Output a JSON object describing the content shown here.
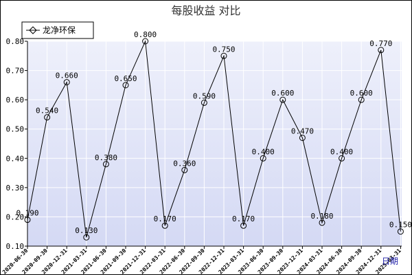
{
  "chart_data": {
    "type": "line",
    "title": "每股收益  对比",
    "xlabel": "日期",
    "ylabel": "",
    "ylim": [
      0.1,
      0.8
    ],
    "yticks": [
      "0.10",
      "0.20",
      "0.30",
      "0.40",
      "0.50",
      "0.60",
      "0.70",
      "0.80"
    ],
    "legend_position": "top-left",
    "grid": true,
    "categories": [
      "2020-06-30",
      "2020-09-30",
      "2020-12-31",
      "2021-03-31",
      "2021-06-30",
      "2021-09-30",
      "2021-12-31",
      "2022-03-31",
      "2022-06-30",
      "2022-09-30",
      "2022-12-31",
      "2023-03-31",
      "2023-06-30",
      "2023-09-30",
      "2023-12-31",
      "2024-03-31",
      "2024-06-30",
      "2024-09-30",
      "2024-12-31",
      "2025-03-31"
    ],
    "series": [
      {
        "name": "龙净环保",
        "values": [
          0.19,
          0.54,
          0.66,
          0.13,
          0.38,
          0.65,
          0.8,
          0.17,
          0.36,
          0.59,
          0.75,
          0.17,
          0.4,
          0.6,
          0.47,
          0.18,
          0.4,
          0.6,
          0.77,
          0.15
        ],
        "labels": [
          "0.190",
          "0.540",
          "0.660",
          "0.130",
          "0.380",
          "0.650",
          "0.800",
          "0.170",
          "0.360",
          "0.590",
          "0.750",
          "0.170",
          "0.400",
          "0.600",
          "0.470",
          "0.180",
          "0.400",
          "0.600",
          "0.770",
          "0.150"
        ],
        "color": "#000000"
      }
    ],
    "colors": {
      "plot_bg_top": "#eef0fb",
      "plot_bg_bottom": "#d4d9f4",
      "grid": "#ffffff",
      "axis": "#000000",
      "xaxis_name": "#1a1aa6"
    }
  }
}
